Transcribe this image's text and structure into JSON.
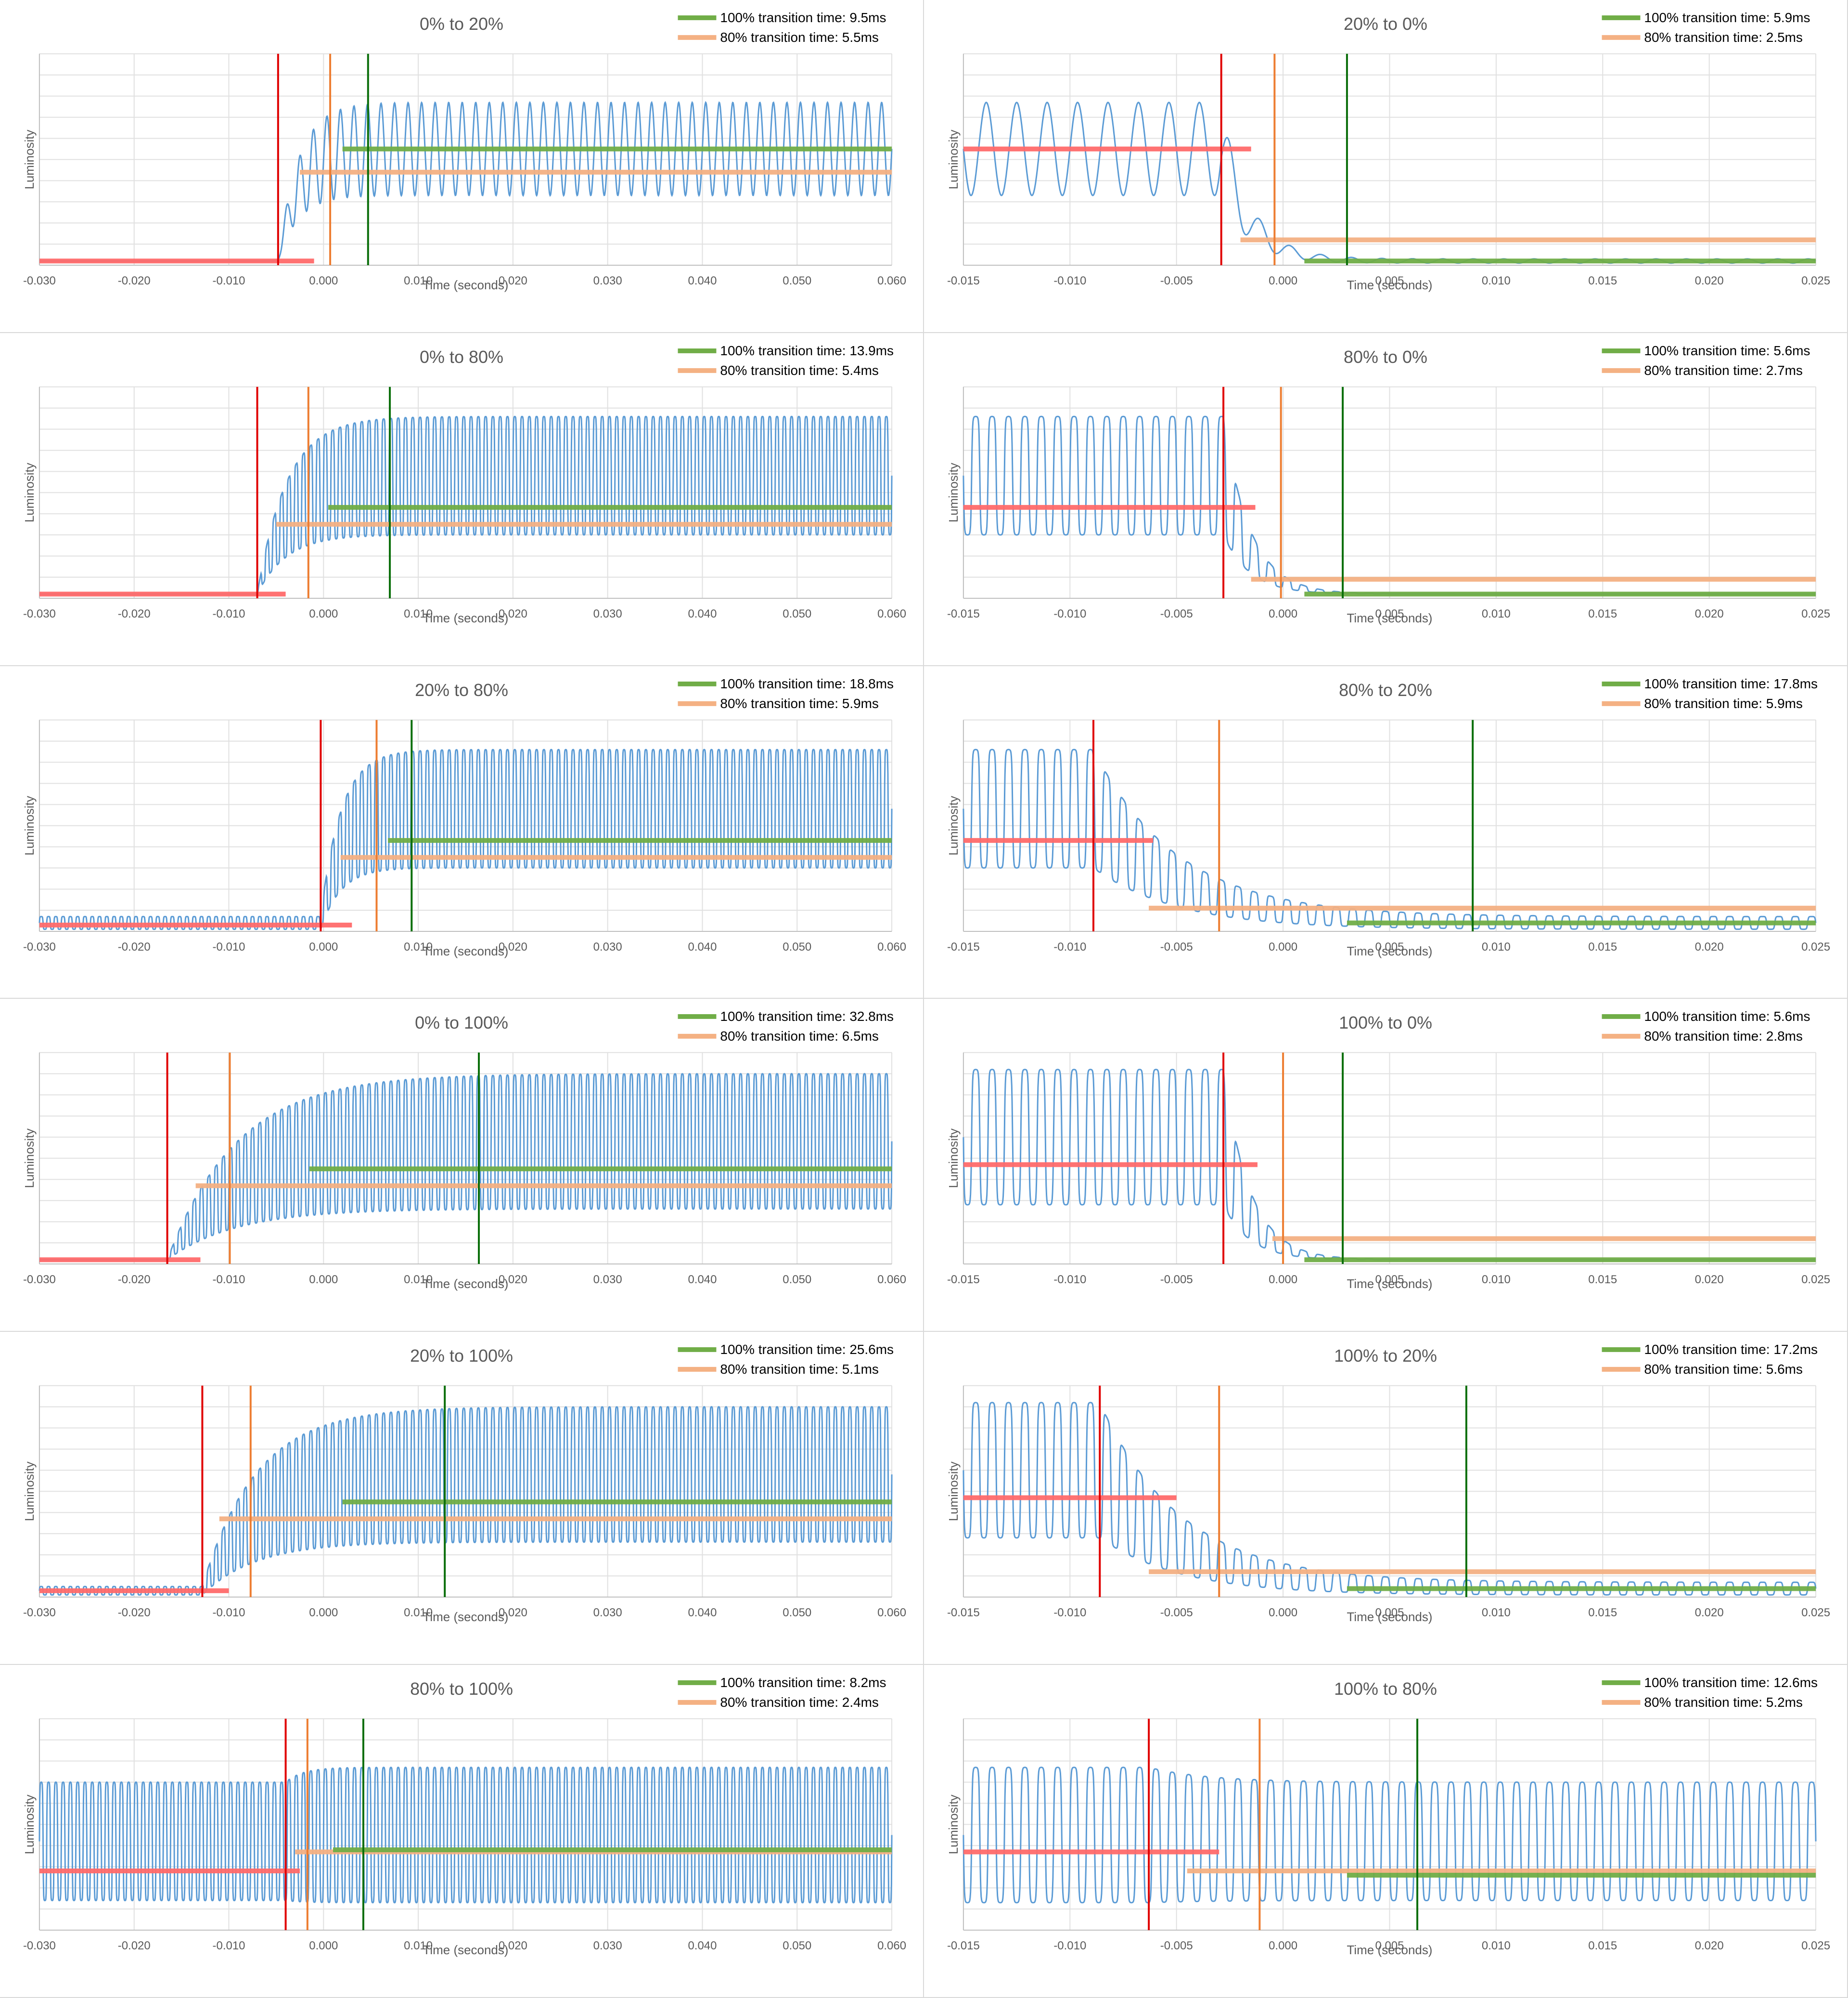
{
  "legend": {
    "green_label": "100% transition time: {v}ms",
    "orange_label": "80% transition time: {v}ms"
  },
  "colors": {
    "signal": "#5b9bd5",
    "green": "#548235",
    "green_marker": "#0a6e0a",
    "orange": "#f4b183",
    "orange_marker": "#ed7d31",
    "red": "#ff6b6b",
    "red_marker": "#e00000",
    "grid": "#e0e0e0",
    "axis": "#bfbfbf"
  },
  "chart_data": [
    {
      "type": "line",
      "title": "0% to 20%",
      "xlabel": "Time (seconds)",
      "ylabel": "Luminosity",
      "xlim": [
        -0.03,
        0.06
      ],
      "xticks": [
        "-0.030",
        "-0.020",
        "-0.010",
        "0.000",
        "0.010",
        "0.020",
        "0.030",
        "0.040",
        "0.050",
        "0.060"
      ],
      "grid": true,
      "legend_position": "top-right",
      "green_time": "9.5",
      "orange_time": "5.5",
      "red_x": -0.0048,
      "orange_x": 0.0007,
      "green_x": 0.0047,
      "start_level": 0.02,
      "end_level": 0.55,
      "end_amp": 0.22,
      "start_amp": 0.0,
      "start_freq": 700,
      "freq": 700,
      "wave": "sine",
      "red_line": {
        "x0": -0.03,
        "x1": -0.001,
        "y": 0.02
      },
      "orange_line": {
        "x0": -0.0025,
        "x1": 0.06,
        "y": 0.44
      },
      "green_line": {
        "x0": 0.002,
        "x1": 0.06,
        "y": 0.55
      }
    },
    {
      "type": "line",
      "title": "20% to 0%",
      "xlabel": "Time (seconds)",
      "ylabel": "Luminosity",
      "xlim": [
        -0.015,
        0.025
      ],
      "xticks": [
        "-0.015",
        "-0.010",
        "-0.005",
        "0.000",
        "0.005",
        "0.010",
        "0.015",
        "0.020",
        "0.025"
      ],
      "grid": true,
      "legend_position": "top-right",
      "green_time": "5.9",
      "orange_time": "2.5",
      "red_x": -0.0029,
      "orange_x": -0.0004,
      "green_x": 0.003,
      "start_level": 0.55,
      "end_level": 0.02,
      "start_amp": 0.22,
      "end_amp": 0.01,
      "start_freq": 700,
      "freq": 700,
      "wave": "sine",
      "red_line": {
        "x0": -0.015,
        "x1": -0.0015,
        "y": 0.55
      },
      "orange_line": {
        "x0": -0.002,
        "x1": 0.025,
        "y": 0.12
      },
      "green_line": {
        "x0": 0.001,
        "x1": 0.025,
        "y": 0.02
      }
    },
    {
      "type": "line",
      "title": "0% to 80%",
      "xlabel": "Time (seconds)",
      "ylabel": "Luminosity",
      "xlim": [
        -0.03,
        0.06
      ],
      "xticks": [
        "-0.030",
        "-0.020",
        "-0.010",
        "0.000",
        "0.010",
        "0.020",
        "0.030",
        "0.040",
        "0.050",
        "0.060"
      ],
      "grid": true,
      "legend_position": "top-right",
      "green_time": "13.9",
      "orange_time": "5.4",
      "red_x": -0.007,
      "orange_x": -0.0016,
      "green_x": 0.007,
      "start_level": 0.02,
      "end_level": 0.58,
      "end_amp": 0.28,
      "start_amp": 0.0,
      "start_freq": 1300,
      "freq": 1300,
      "wave": "square",
      "red_line": {
        "x0": -0.03,
        "x1": -0.004,
        "y": 0.02
      },
      "orange_line": {
        "x0": -0.005,
        "x1": 0.06,
        "y": 0.35
      },
      "green_line": {
        "x0": 0.0005,
        "x1": 0.06,
        "y": 0.43
      }
    },
    {
      "type": "line",
      "title": "80% to 0%",
      "xlabel": "Time (seconds)",
      "ylabel": "Luminosity",
      "xlim": [
        -0.015,
        0.025
      ],
      "xticks": [
        "-0.015",
        "-0.010",
        "-0.005",
        "0.000",
        "0.005",
        "0.010",
        "0.015",
        "0.020",
        "0.025"
      ],
      "grid": true,
      "legend_position": "top-right",
      "green_time": "5.6",
      "orange_time": "2.7",
      "red_x": -0.0028,
      "orange_x": -0.0001,
      "green_x": 0.0028,
      "start_level": 0.58,
      "end_level": 0.02,
      "start_amp": 0.28,
      "end_amp": 0.0,
      "start_freq": 1300,
      "freq": 1300,
      "wave": "square",
      "red_line": {
        "x0": -0.015,
        "x1": -0.0013,
        "y": 0.43
      },
      "orange_line": {
        "x0": -0.0015,
        "x1": 0.025,
        "y": 0.09
      },
      "green_line": {
        "x0": 0.001,
        "x1": 0.025,
        "y": 0.02
      }
    },
    {
      "type": "line",
      "title": "20% to 80%",
      "xlabel": "Time (seconds)",
      "ylabel": "Luminosity",
      "xlim": [
        -0.03,
        0.06
      ],
      "xticks": [
        "-0.030",
        "-0.020",
        "-0.010",
        "0.000",
        "0.010",
        "0.020",
        "0.030",
        "0.040",
        "0.050",
        "0.060"
      ],
      "grid": true,
      "legend_position": "top-right",
      "green_time": "18.8",
      "orange_time": "5.9",
      "red_x": -0.0003,
      "orange_x": 0.0056,
      "green_x": 0.0093,
      "start_level": 0.04,
      "end_level": 0.58,
      "start_amp": 0.03,
      "end_amp": 0.28,
      "start_freq": 1300,
      "freq": 1300,
      "wave": "square",
      "red_line": {
        "x0": -0.03,
        "x1": 0.003,
        "y": 0.03
      },
      "orange_line": {
        "x0": 0.0018,
        "x1": 0.06,
        "y": 0.35
      },
      "green_line": {
        "x0": 0.0068,
        "x1": 0.06,
        "y": 0.43
      }
    },
    {
      "type": "line",
      "title": "80% to 20%",
      "xlabel": "Time (seconds)",
      "ylabel": "Luminosity",
      "xlim": [
        -0.015,
        0.025
      ],
      "xticks": [
        "-0.015",
        "-0.010",
        "-0.005",
        "0.000",
        "0.005",
        "0.010",
        "0.015",
        "0.020",
        "0.025"
      ],
      "grid": true,
      "legend_position": "top-right",
      "green_time": "17.8",
      "orange_time": "5.9",
      "red_x": -0.0089,
      "orange_x": -0.003,
      "green_x": 0.0089,
      "start_level": 0.58,
      "end_level": 0.04,
      "start_amp": 0.28,
      "end_amp": 0.03,
      "start_freq": 1300,
      "freq": 1300,
      "wave": "square",
      "red_line": {
        "x0": -0.015,
        "x1": -0.0061,
        "y": 0.43
      },
      "orange_line": {
        "x0": -0.0063,
        "x1": 0.025,
        "y": 0.11
      },
      "green_line": {
        "x0": 0.003,
        "x1": 0.025,
        "y": 0.04
      }
    },
    {
      "type": "line",
      "title": "0% to 100%",
      "xlabel": "Time (seconds)",
      "ylabel": "Luminosity",
      "xlim": [
        -0.03,
        0.06
      ],
      "xticks": [
        "-0.030",
        "-0.020",
        "-0.010",
        "0.000",
        "0.010",
        "0.020",
        "0.030",
        "0.040",
        "0.050",
        "0.060"
      ],
      "grid": true,
      "legend_position": "top-right",
      "green_time": "32.8",
      "orange_time": "6.5",
      "red_x": -0.0165,
      "orange_x": -0.0099,
      "green_x": 0.0164,
      "start_level": 0.02,
      "end_level": 0.58,
      "end_amp": 0.32,
      "start_amp": 0.0,
      "start_freq": 1300,
      "freq": 1300,
      "wave": "square",
      "red_line": {
        "x0": -0.03,
        "x1": -0.013,
        "y": 0.02
      },
      "orange_line": {
        "x0": -0.0135,
        "x1": 0.06,
        "y": 0.37
      },
      "green_line": {
        "x0": -0.0015,
        "x1": 0.06,
        "y": 0.45
      }
    },
    {
      "type": "line",
      "title": "100% to 0%",
      "xlabel": "Time (seconds)",
      "ylabel": "Luminosity",
      "xlim": [
        -0.015,
        0.025
      ],
      "xticks": [
        "-0.015",
        "-0.010",
        "-0.005",
        "0.000",
        "0.005",
        "0.010",
        "0.015",
        "0.020",
        "0.025"
      ],
      "grid": true,
      "legend_position": "top-right",
      "green_time": "5.6",
      "orange_time": "2.8",
      "red_x": -0.0028,
      "orange_x": 0.0,
      "green_x": 0.0028,
      "start_level": 0.6,
      "end_level": 0.02,
      "start_amp": 0.32,
      "end_amp": 0.0,
      "start_freq": 1300,
      "freq": 1300,
      "wave": "square",
      "red_line": {
        "x0": -0.015,
        "x1": -0.0012,
        "y": 0.47
      },
      "orange_line": {
        "x0": -0.0005,
        "x1": 0.025,
        "y": 0.12
      },
      "green_line": {
        "x0": 0.001,
        "x1": 0.025,
        "y": 0.02
      }
    },
    {
      "type": "line",
      "title": "20% to 100%",
      "xlabel": "Time (seconds)",
      "ylabel": "Luminosity",
      "xlim": [
        -0.03,
        0.06
      ],
      "xticks": [
        "-0.030",
        "-0.020",
        "-0.010",
        "0.000",
        "0.010",
        "0.020",
        "0.030",
        "0.040",
        "0.050",
        "0.060"
      ],
      "grid": true,
      "legend_position": "top-right",
      "green_time": "25.6",
      "orange_time": "5.1",
      "red_x": -0.0128,
      "orange_x": -0.0077,
      "green_x": 0.0128,
      "start_level": 0.03,
      "end_level": 0.58,
      "start_amp": 0.02,
      "end_amp": 0.32,
      "start_freq": 1300,
      "freq": 1300,
      "wave": "square",
      "red_line": {
        "x0": -0.03,
        "x1": -0.01,
        "y": 0.03
      },
      "orange_line": {
        "x0": -0.011,
        "x1": 0.06,
        "y": 0.37
      },
      "green_line": {
        "x0": 0.002,
        "x1": 0.06,
        "y": 0.45
      }
    },
    {
      "type": "line",
      "title": "100% to 20%",
      "xlabel": "Time (seconds)",
      "ylabel": "Luminosity",
      "xlim": [
        -0.015,
        0.025
      ],
      "xticks": [
        "-0.015",
        "-0.010",
        "-0.005",
        "0.000",
        "0.005",
        "0.010",
        "0.015",
        "0.020",
        "0.025"
      ],
      "grid": true,
      "legend_position": "top-right",
      "green_time": "17.2",
      "orange_time": "5.6",
      "red_x": -0.0086,
      "orange_x": -0.003,
      "green_x": 0.0086,
      "start_level": 0.6,
      "end_level": 0.04,
      "start_amp": 0.32,
      "end_amp": 0.03,
      "start_freq": 1300,
      "freq": 1300,
      "wave": "square",
      "red_line": {
        "x0": -0.015,
        "x1": -0.005,
        "y": 0.47
      },
      "orange_line": {
        "x0": -0.0063,
        "x1": 0.025,
        "y": 0.12
      },
      "green_line": {
        "x0": 0.003,
        "x1": 0.025,
        "y": 0.04
      }
    },
    {
      "type": "line",
      "title": "80% to 100%",
      "xlabel": "Time (seconds)",
      "ylabel": "Luminosity",
      "xlim": [
        -0.03,
        0.06
      ],
      "xticks": [
        "-0.030",
        "-0.020",
        "-0.010",
        "0.000",
        "0.010",
        "0.020",
        "0.030",
        "0.040",
        "0.050",
        "0.060"
      ],
      "grid": true,
      "legend_position": "top-right",
      "green_time": "8.2",
      "orange_time": "2.4",
      "red_x": -0.004,
      "orange_x": -0.0017,
      "green_x": 0.0042,
      "start_level": 0.42,
      "end_level": 0.45,
      "start_amp": 0.28,
      "end_amp": 0.32,
      "start_freq": 1300,
      "freq": 1300,
      "wave": "square",
      "red_line": {
        "x0": -0.03,
        "x1": -0.0025,
        "y": 0.28
      },
      "orange_line": {
        "x0": -0.003,
        "x1": 0.06,
        "y": 0.37
      },
      "green_line": {
        "x0": 0.001,
        "x1": 0.06,
        "y": 0.38
      }
    },
    {
      "type": "line",
      "title": "100% to 80%",
      "xlabel": "Time (seconds)",
      "ylabel": "Luminosity",
      "xlim": [
        -0.015,
        0.025
      ],
      "xticks": [
        "-0.015",
        "-0.010",
        "-0.005",
        "0.000",
        "0.005",
        "0.010",
        "0.015",
        "0.020",
        "0.025"
      ],
      "grid": true,
      "legend_position": "top-right",
      "green_time": "12.6",
      "orange_time": "5.2",
      "red_x": -0.0063,
      "orange_x": -0.0011,
      "green_x": 0.0063,
      "start_level": 0.45,
      "end_level": 0.42,
      "start_amp": 0.32,
      "end_amp": 0.28,
      "start_freq": 1300,
      "freq": 1300,
      "wave": "square",
      "red_line": {
        "x0": -0.015,
        "x1": -0.003,
        "y": 0.37
      },
      "orange_line": {
        "x0": -0.0045,
        "x1": 0.025,
        "y": 0.28
      },
      "green_line": {
        "x0": 0.003,
        "x1": 0.025,
        "y": 0.26
      }
    }
  ]
}
